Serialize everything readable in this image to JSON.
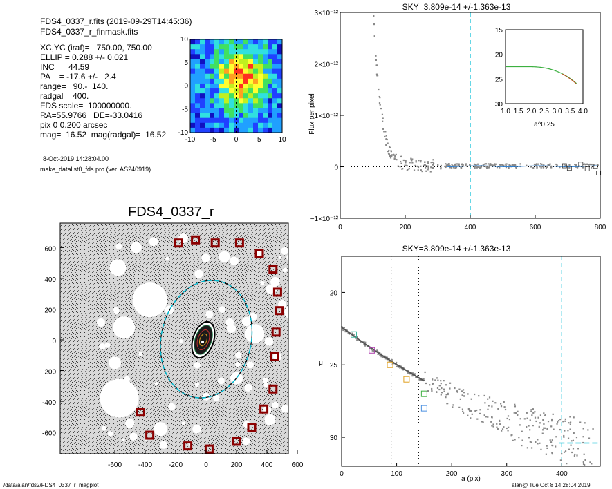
{
  "header": {
    "file_line": "FDS4_0337_r.fits  (2019-09-29T14:45:36)",
    "mask_line": "FDS4_0337_r_finmask.fits",
    "params": [
      "XC,YC (iraf)=   750.00, 750.00",
      "ELLIP = 0.288 +/- 0.021",
      "INC   = 44.59",
      "PA    = -17.6 +/-   2.4",
      "range=   90.-  140.",
      "radgal=  400.",
      "FDS scale=  100000000.",
      "RA=55.9766   DE=-33.0416",
      "pix 0 0.200 arcsec",
      "mag=  16.52  mag(radgal)=  16.52"
    ],
    "date_line": "8-Oct-2019 14:28:04.00",
    "program_line": "make_datalist0_fds.pro (ver. AS240919)"
  },
  "footer": {
    "path": "/data/alan/fds2/FDS4_0337_r_magplot",
    "user_time": "alan@  Tue Oct  8 14:28:04 2019"
  },
  "thumbnail": {
    "x_ticks": [
      "-10",
      "-5",
      "0",
      "5",
      "10"
    ],
    "y_ticks": [
      "10",
      "5",
      "0",
      "-5",
      "-10"
    ]
  },
  "image_panel": {
    "title": "FDS4_0337_r",
    "x_ticks": [
      "-600",
      "-400",
      "-200",
      "0",
      "200",
      "400",
      "600"
    ],
    "y_ticks": [
      "600",
      "400",
      "200",
      "0",
      "-200",
      "-400",
      "-600"
    ],
    "colors": {
      "mask_box": "#8b0000",
      "ellipse": "#00bcd4"
    }
  },
  "chart_data": [
    {
      "type": "scatter",
      "title": "SKY=3.809e-14 +/-1.363e-13",
      "xlabel": "",
      "ylabel": "Flux per pixel",
      "xlim": [
        0,
        800
      ],
      "ylim": [
        -1e-12,
        3e-12
      ],
      "x_ticks": [
        "0",
        "200",
        "400",
        "600",
        "800"
      ],
      "y_ticks": [
        "3×10⁻¹²",
        "2×10⁻¹²",
        "1×10⁻¹²",
        "0",
        "−1×10⁻¹²"
      ],
      "vline_x": 400,
      "inset": {
        "xlabel": "a^0.25",
        "x_ticks": [
          "1.0",
          "1.5",
          "2.0",
          "2.5",
          "3.0",
          "3.5",
          "4.0"
        ],
        "y_ticks": [
          "15",
          "20",
          "25",
          "30"
        ]
      },
      "colors": {
        "points": "#888888",
        "vline": "#00bcd4",
        "fit": "#2e8b57"
      }
    },
    {
      "type": "scatter",
      "title": "SKY=3.809e-14 +/-1.363e-13",
      "xlabel": "a (pix)",
      "ylabel": "μ",
      "xlim": [
        0,
        470
      ],
      "ylim": [
        32,
        17.5
      ],
      "x_ticks": [
        "0",
        "100",
        "200",
        "300",
        "400"
      ],
      "y_ticks": [
        "20",
        "25",
        "30"
      ],
      "vlines_dotted": [
        90,
        140
      ],
      "vline_dashed": 400,
      "sky_level": 30.4,
      "markers": [
        {
          "a": 22,
          "mu": 22.9,
          "color": "#3cb8a0"
        },
        {
          "a": 55,
          "mu": 24.0,
          "color": "#b040b0"
        },
        {
          "a": 88,
          "mu": 25.0,
          "color": "#e0a020"
        },
        {
          "a": 118,
          "mu": 26.0,
          "color": "#e0a020"
        },
        {
          "a": 150,
          "mu": 27.0,
          "color": "#3cb040"
        },
        {
          "a": 150,
          "mu": 28.0,
          "color": "#4a90e0"
        }
      ]
    }
  ]
}
